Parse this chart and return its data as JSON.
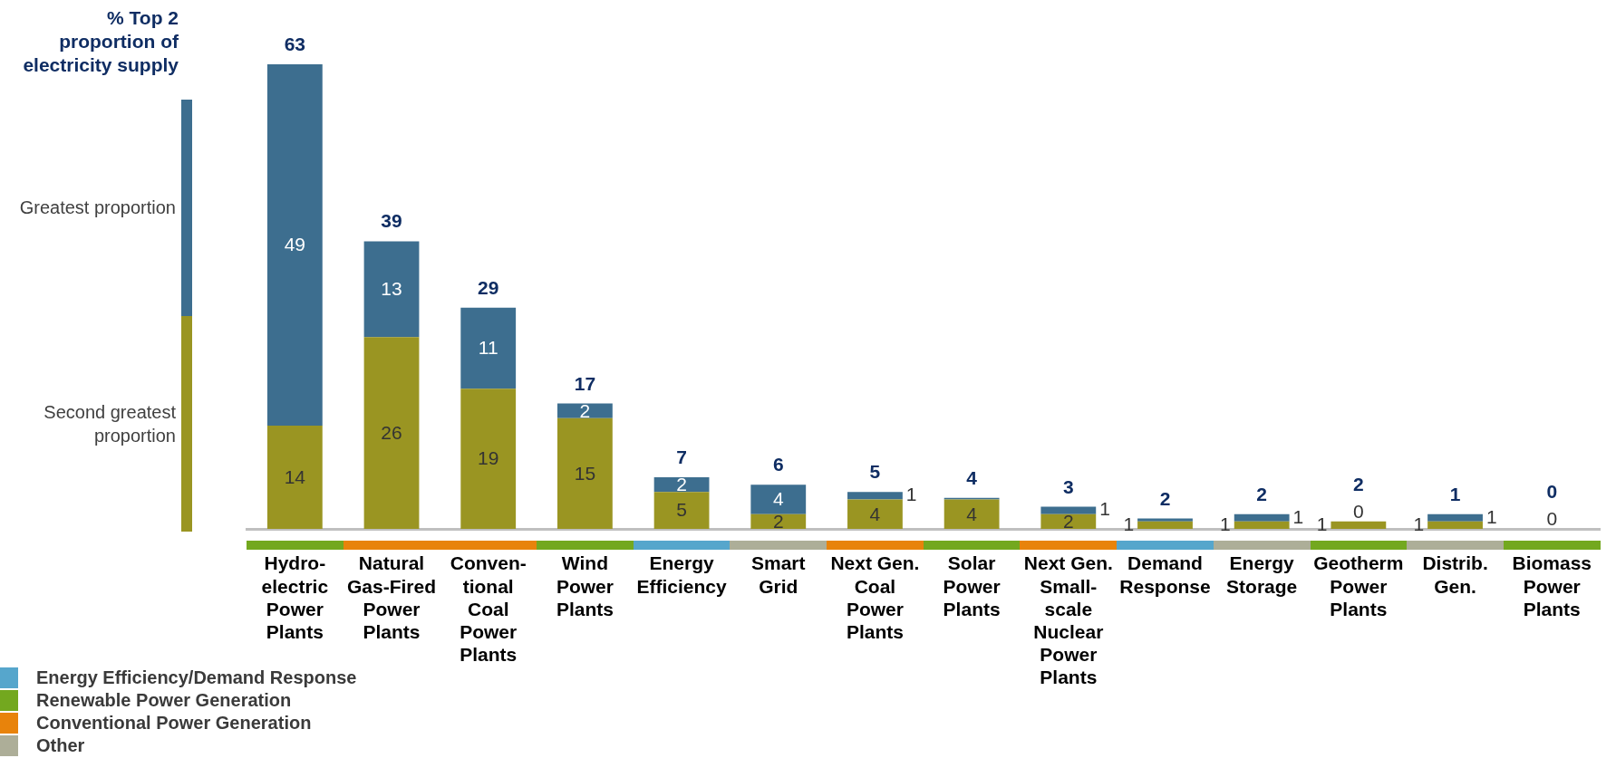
{
  "chart_data": {
    "type": "bar",
    "title": "% Top 2 proportion of electricity supply",
    "categories": [
      "Hydro-electric Power Plants",
      "Natural Gas-Fired Power Plants",
      "Conven-tional Coal Power Plants",
      "Wind Power Plants",
      "Energy Efficiency",
      "Smart Grid",
      "Next Gen. Coal Power Plants",
      "Solar Power Plants",
      "Next Gen. Small-scale Nuclear Power Plants",
      "Demand Response",
      "Energy Storage",
      "Geotherm Power Plants",
      "Distrib. Gen.",
      "Biomass Power Plants"
    ],
    "stacked": true,
    "legend": "left",
    "series": [
      {
        "name": "Second greatest proportion",
        "color": "#9a9522",
        "values": [
          14,
          26,
          19,
          15,
          5,
          2,
          4,
          4,
          2,
          1,
          1,
          1,
          1,
          0
        ],
        "value_labels": [
          "14",
          "26",
          "19",
          "15",
          "5",
          "2",
          "4",
          "4",
          "2",
          "1",
          "1",
          "1",
          "1",
          null
        ]
      },
      {
        "name": "Greatest proportion",
        "color": "#3d6e8f",
        "values": [
          49,
          13,
          11,
          2,
          2,
          4,
          1,
          0.2,
          1,
          0.4,
          1,
          0,
          1,
          0
        ],
        "value_labels": [
          "49",
          "13",
          "11",
          "2",
          "2",
          "4",
          "1",
          null,
          "1",
          null,
          "1",
          "0",
          "1",
          "0"
        ]
      }
    ],
    "totals": [
      "63",
      "39",
      "29",
      "17",
      "7",
      "6",
      "5",
      "4",
      "3",
      "2",
      "2",
      "2",
      "1",
      "0"
    ],
    "annotations": [
      "Energy Efficiency/Demand Response",
      "Renewable Power Generation",
      "Conventional Power Generation",
      "Other"
    ]
  }
}
